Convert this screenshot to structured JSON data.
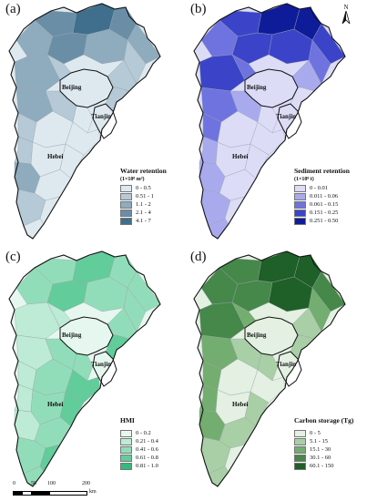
{
  "panels": [
    {
      "label": "(a)",
      "legend_title": "Water retention",
      "legend_unit": "(1×10⁸ m³)",
      "classes": [
        "0 - 0.5",
        "0.51 - 1",
        "1.1 - 2",
        "2.1 - 4",
        "4.1 - 7"
      ],
      "colors": [
        "#dde9ef",
        "#b5c9d6",
        "#8fabbe",
        "#6a8ea6",
        "#3f6f8c"
      ],
      "show_north": false
    },
    {
      "label": "(b)",
      "legend_title": "Sediment retention",
      "legend_unit": "(1×10⁸ t)",
      "classes": [
        "0 - 0.01",
        "0.011 - 0.06",
        "0.061 - 0.15",
        "0.151 - 0.25",
        "0.251 - 0.50"
      ],
      "colors": [
        "#dcdcf7",
        "#a9aaee",
        "#6f73df",
        "#3b44c8",
        "#0f1c9a"
      ],
      "show_north": true
    },
    {
      "label": "(c)",
      "legend_title": "HMI",
      "legend_unit": "",
      "classes": [
        "0 - 0.2",
        "0.21 - 0.4",
        "0.41 - 0.6",
        "0.61 - 0.8",
        "0.81 - 1.0"
      ],
      "colors": [
        "#e6f7ef",
        "#bdebd5",
        "#92ddb9",
        "#62cc9b",
        "#34b97e"
      ],
      "show_north": false
    },
    {
      "label": "(d)",
      "legend_title": "Carbon storage (Tg)",
      "legend_unit": "",
      "classes": [
        "0 - 5",
        "5.1 - 15",
        "15.1 - 30",
        "30.1 - 60",
        "60.1 - 150"
      ],
      "colors": [
        "#e3f0e2",
        "#a9cfa6",
        "#74ad70",
        "#46874a",
        "#1f5f28"
      ],
      "show_north": false
    }
  ],
  "region_labels": {
    "beijing": "Beijing",
    "tianjin": "Tianjin",
    "hebei": "Hebei"
  },
  "north_label": "N",
  "scale": {
    "ticks": [
      "0",
      "50",
      "100",
      "200"
    ],
    "unit": "km"
  }
}
